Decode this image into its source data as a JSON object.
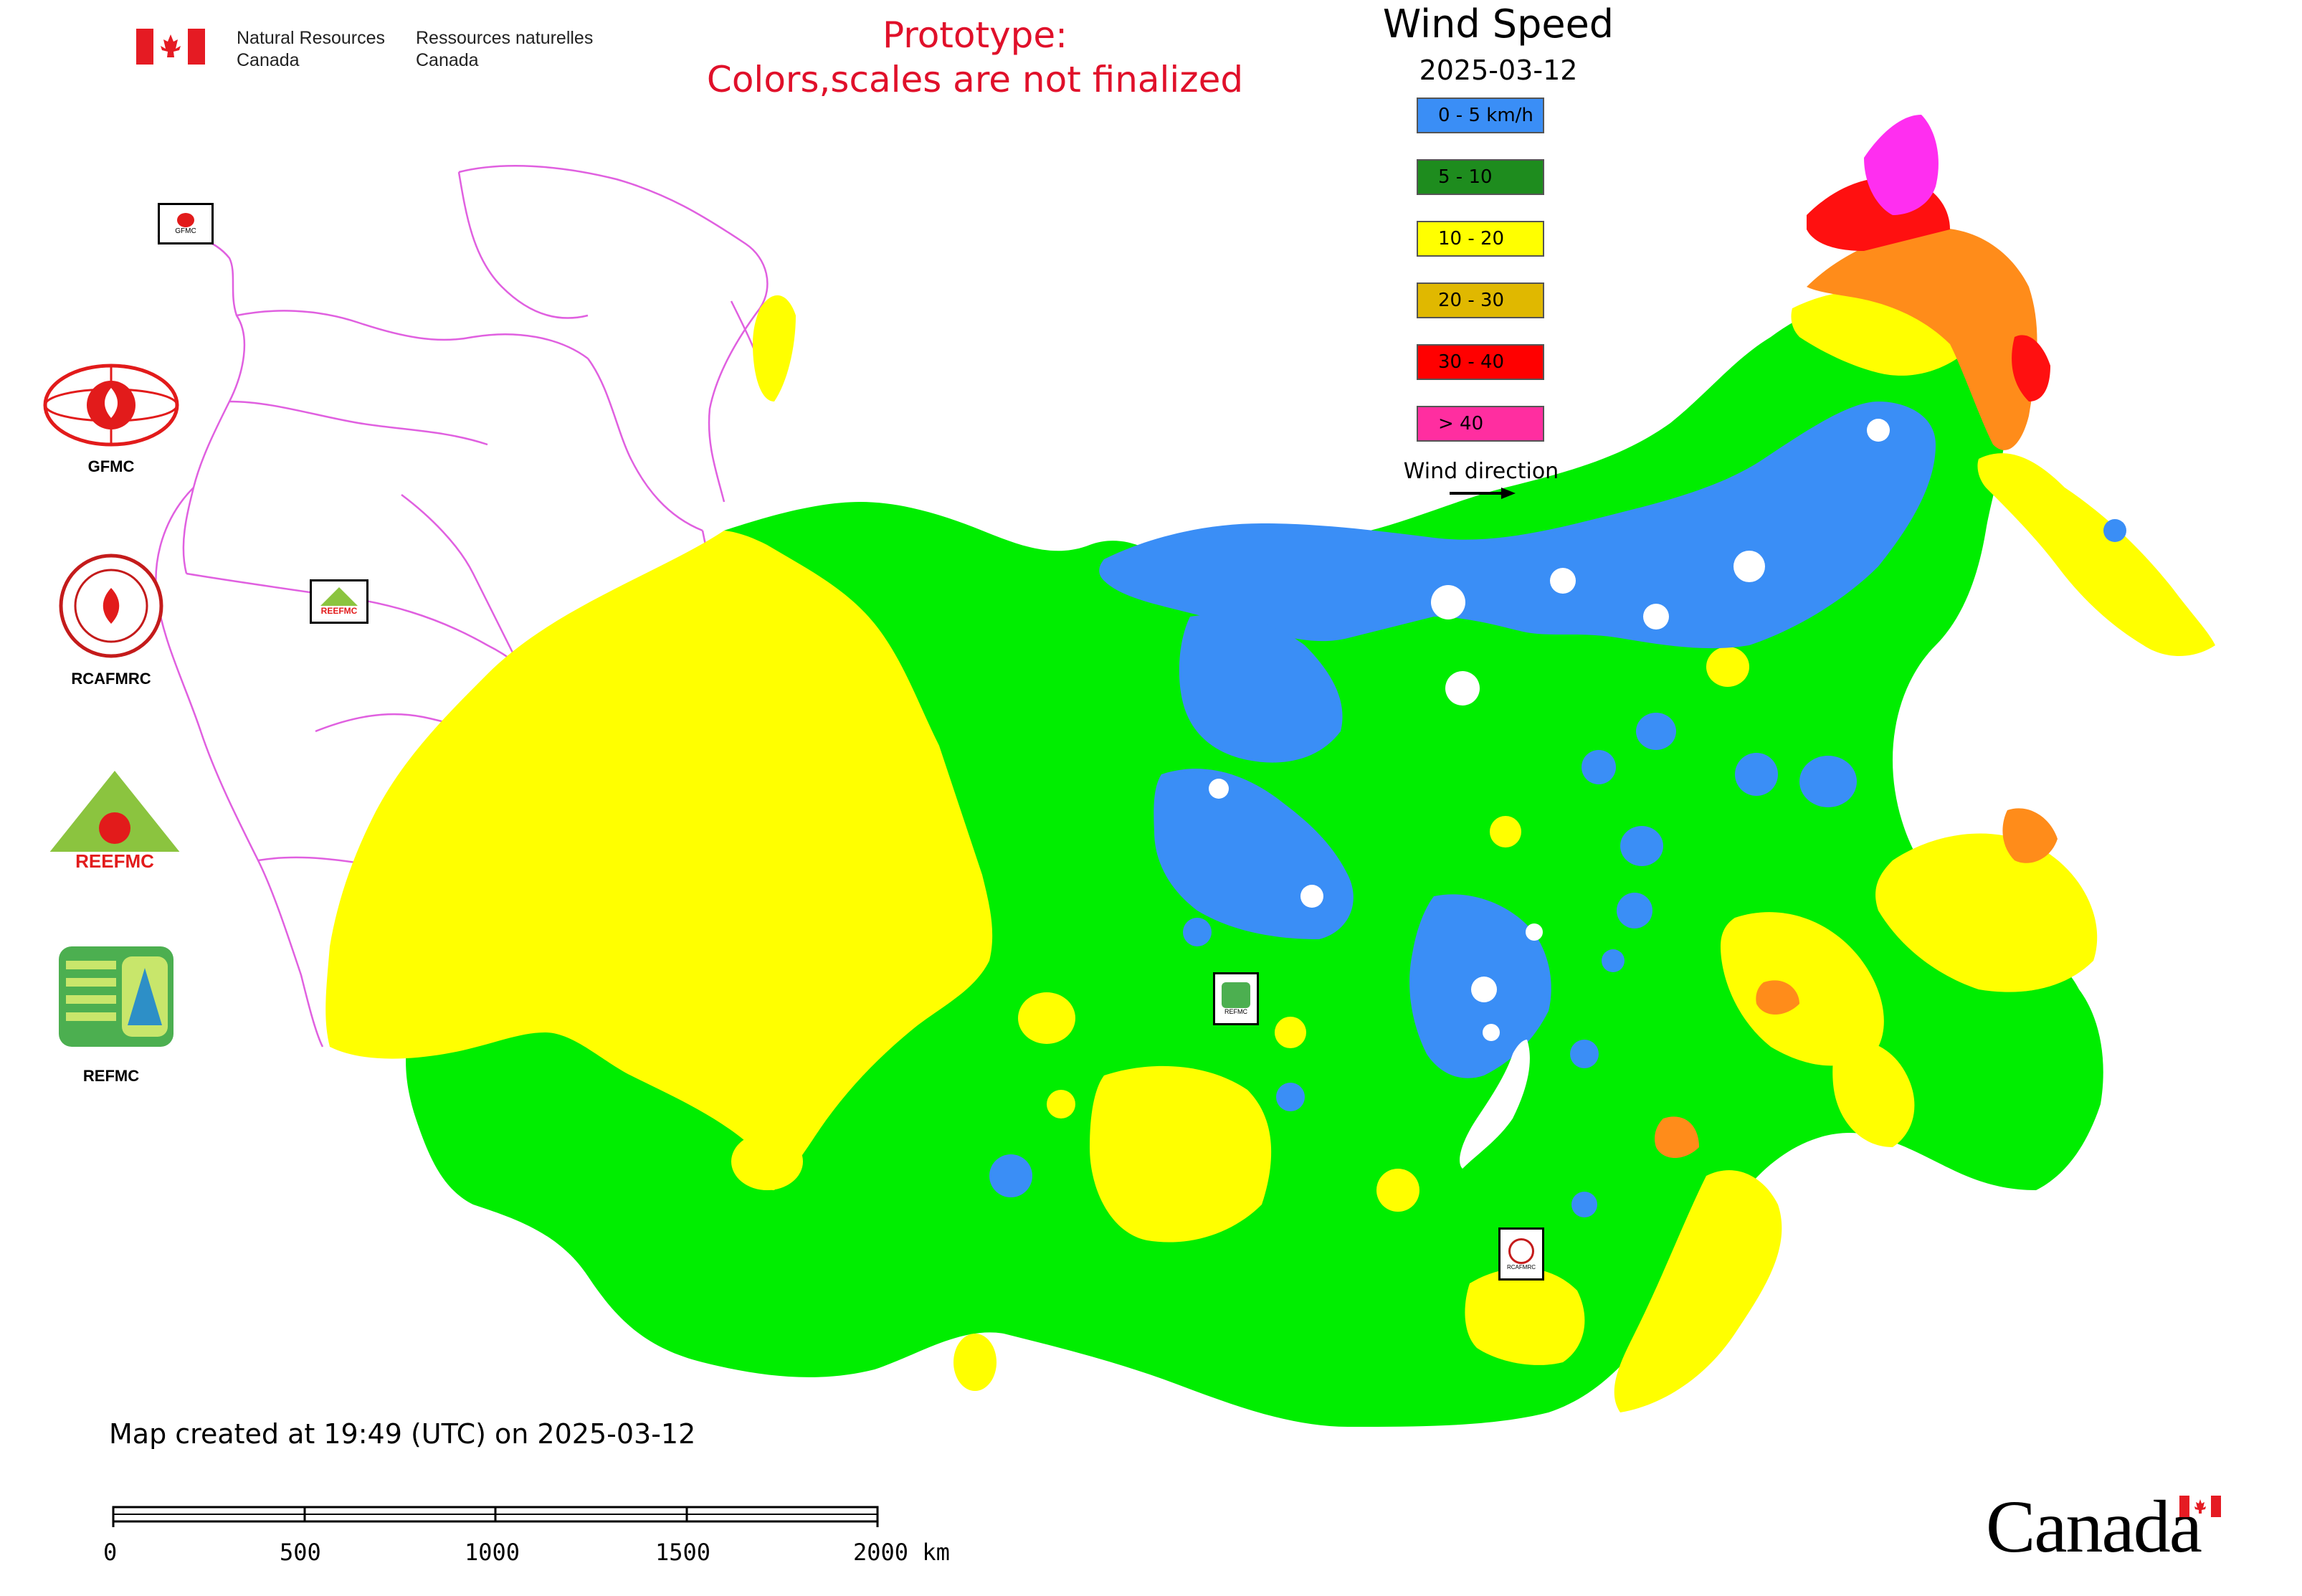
{
  "header": {
    "agency_en_line1": "Natural Resources",
    "agency_en_line2": "Canada",
    "agency_fr_line1": "Ressources naturelles",
    "agency_fr_line2": "Canada",
    "prototype_line1": "Prototype:",
    "prototype_line2": "Colors,scales are not finalized"
  },
  "map_title": "Wind Speed",
  "map_date": "2025-03-12",
  "legend": {
    "items": [
      {
        "label": "0 - 5 km/h",
        "color": "#3a8ef6"
      },
      {
        "label": "5 - 10",
        "color": "#1e8c1e"
      },
      {
        "label": "10 - 20",
        "color": "#ffff00"
      },
      {
        "label": "20 - 30",
        "color": "#e0b800"
      },
      {
        "label": "30 - 40",
        "color": "#ff0000"
      },
      {
        "label": "> 40",
        "color": "#ff2ea0"
      }
    ],
    "wind_direction_label": "Wind direction"
  },
  "agencies": [
    {
      "label": "GFMC",
      "icon": "gfmc-logo"
    },
    {
      "label": "RCAFMRC",
      "icon": "rcafmrc-logo"
    },
    {
      "label": "",
      "icon": "reefmc-logo",
      "logo_text": "REEFMC"
    },
    {
      "label": "REFMC",
      "icon": "refmc-logo"
    }
  ],
  "map_markers": [
    {
      "icon": "gfmc-marker",
      "small_text": "GFMC"
    },
    {
      "icon": "reefmc-marker",
      "small_text": "REEFMC"
    },
    {
      "icon": "refmc-marker",
      "small_text": "REFMC"
    },
    {
      "icon": "rcafmrc-marker",
      "small_text": "RCAFMRC"
    }
  ],
  "footer": {
    "created_text": "Map created at 19:49 (UTC) on 2025-03-12",
    "scale_ticks": [
      "0",
      "500",
      "1000",
      "1500",
      "2000 km"
    ],
    "wordmark": "Canada"
  },
  "colors": {
    "green": "#00ee00",
    "blue": "#3a8ef6",
    "yellow": "#ffff00",
    "orange": "#ff8c1a",
    "red": "#ff1010",
    "magenta": "#ff2ef0",
    "borders": "#e060e0",
    "prototype_text": "#e0102a"
  }
}
